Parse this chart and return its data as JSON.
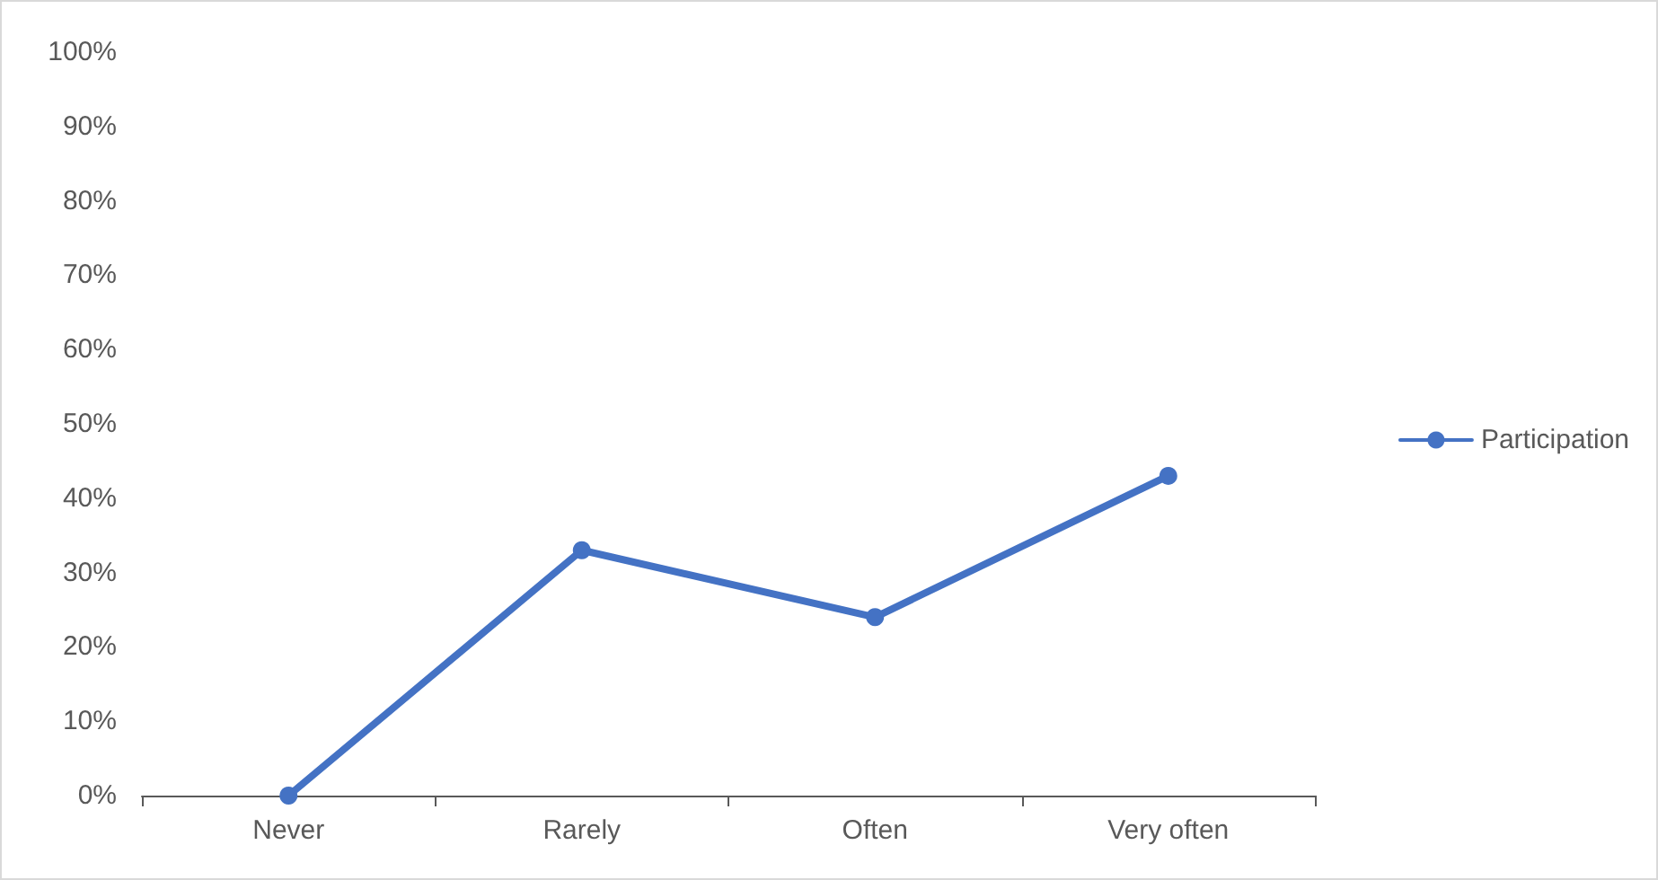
{
  "chart_data": {
    "type": "line",
    "categories": [
      "Never",
      "Rarely",
      "Often",
      "Very often"
    ],
    "series": [
      {
        "name": "Participation",
        "color": "#4472c4",
        "values": [
          0,
          33,
          24,
          43
        ]
      }
    ],
    "ylim": [
      0,
      100
    ],
    "yticks": [
      {
        "value": 0,
        "label": "0%"
      },
      {
        "value": 10,
        "label": "10%"
      },
      {
        "value": 20,
        "label": "20%"
      },
      {
        "value": 30,
        "label": "30%"
      },
      {
        "value": 40,
        "label": "40%"
      },
      {
        "value": 50,
        "label": "50%"
      },
      {
        "value": 60,
        "label": "60%"
      },
      {
        "value": 70,
        "label": "70%"
      },
      {
        "value": 80,
        "label": "80%"
      },
      {
        "value": 90,
        "label": "90%"
      },
      {
        "value": 100,
        "label": "100%"
      }
    ],
    "grid": false,
    "legend": "right",
    "marker": "circle",
    "line_style": "solid"
  }
}
